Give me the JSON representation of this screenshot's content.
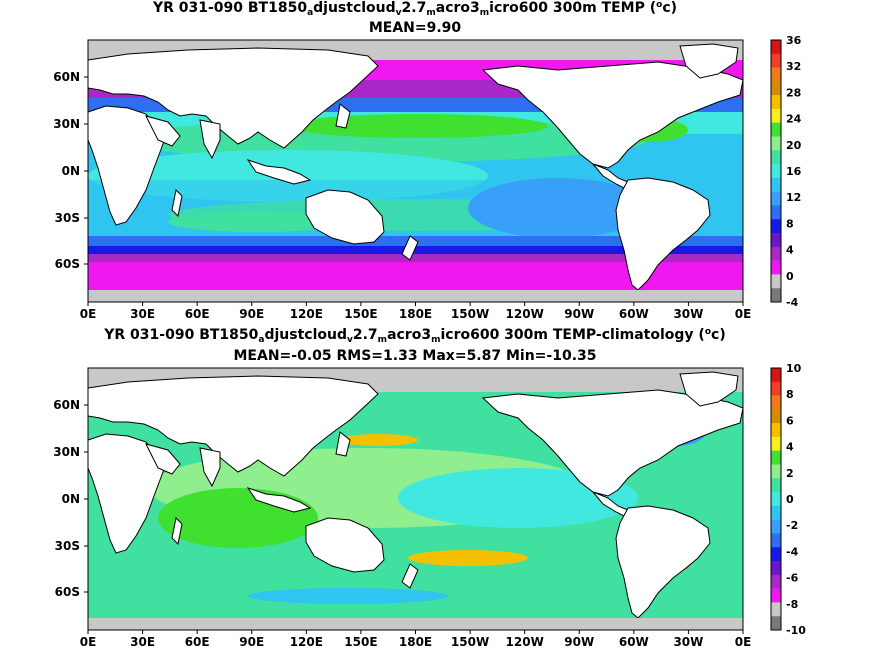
{
  "panels": [
    {
      "title_prefix": "YR 031-090 BT1850",
      "title_sub1": "a",
      "title_mid1": "djustcloud",
      "title_sub2": "v",
      "title_mid2": "2.7",
      "title_sub3": "m",
      "title_mid3": "acro3",
      "title_sub4": "m",
      "title_mid4": "icro600 300m TEMP (",
      "title_sup": "o",
      "title_suffix": "c)",
      "stats": "MEAN=9.90",
      "colorbar_ticks": [
        "36",
        "32",
        "28",
        "24",
        "20",
        "16",
        "12",
        "8",
        "4",
        "0",
        "-4"
      ],
      "colorbar_colors": [
        "#d81515",
        "#f0402a",
        "#f07a1a",
        "#d48c00",
        "#f4c000",
        "#f7ee20",
        "#3fe030",
        "#8fef8f",
        "#3fe0a0",
        "#40e8e0",
        "#30c4f0",
        "#38a0f8",
        "#2d6ff0",
        "#1818e8",
        "#6a18c8",
        "#a828c8",
        "#f018f0",
        "#c8c8c8",
        "#7a7a7a"
      ]
    },
    {
      "title_prefix": "YR 031-090 BT1850",
      "title_sub1": "a",
      "title_mid1": "djustcloud",
      "title_sub2": "v",
      "title_mid2": "2.7",
      "title_sub3": "m",
      "title_mid3": "acro3",
      "title_sub4": "m",
      "title_mid4": "icro600 300m TEMP-climatology (",
      "title_sup": "o",
      "title_suffix": "c)",
      "stats": "MEAN=-0.05   RMS=1.33   Max=5.87   Min=-10.35",
      "colorbar_ticks": [
        "10",
        "8",
        "6",
        "4",
        "2",
        "0",
        "-2",
        "-4",
        "-6",
        "-8",
        "-10"
      ],
      "colorbar_colors": [
        "#d81515",
        "#f0402a",
        "#f07a1a",
        "#d48c00",
        "#f4c000",
        "#f7ee20",
        "#3fe030",
        "#8fef8f",
        "#3fe0a0",
        "#40e8e0",
        "#30c4f0",
        "#38a0f8",
        "#2d6ff0",
        "#1818e8",
        "#6a18c8",
        "#a828c8",
        "#f018f0",
        "#c8c8c8",
        "#7a7a7a"
      ]
    }
  ],
  "lat_labels": [
    "60N",
    "30N",
    "0N",
    "30S",
    "60S"
  ],
  "lon_labels": [
    "0E",
    "30E",
    "60E",
    "90E",
    "120E",
    "150E",
    "180E",
    "150W",
    "120W",
    "90W",
    "60W",
    "30W",
    "0E"
  ]
}
